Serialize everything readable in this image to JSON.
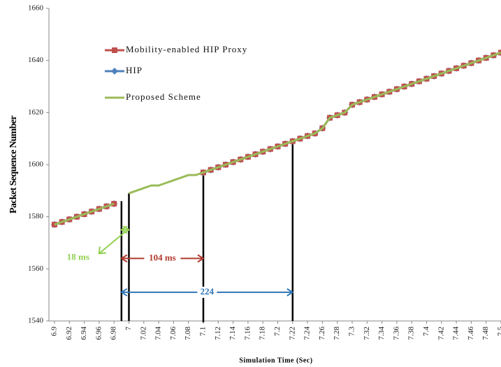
{
  "chart_data": {
    "type": "line",
    "x_label": "Simulation Time (Sec)",
    "y_label": "Packet Sequence Number",
    "xlim": [
      6.8925,
      7.5
    ],
    "ylim": [
      1540,
      1660
    ],
    "xticks": [
      6.9,
      6.92,
      6.94,
      6.96,
      6.98,
      7,
      7.02,
      7.04,
      7.06,
      7.08,
      7.1,
      7.12,
      7.14,
      7.16,
      7.18,
      7.2,
      7.22,
      7.24,
      7.26,
      7.28,
      7.3,
      7.32,
      7.34,
      7.36,
      7.38,
      7.4,
      7.42,
      7.44,
      7.46,
      7.48,
      7.5
    ],
    "yticks": [
      1540,
      1560,
      1580,
      1600,
      1620,
      1640,
      1660
    ],
    "legend": "upper left",
    "x": [
      6.9,
      6.91,
      6.92,
      6.93,
      6.94,
      6.95,
      6.96,
      6.97,
      6.98,
      6.99,
      7.0,
      7.01,
      7.02,
      7.03,
      7.04,
      7.05,
      7.06,
      7.07,
      7.08,
      7.09,
      7.1,
      7.11,
      7.12,
      7.13,
      7.14,
      7.15,
      7.16,
      7.17,
      7.18,
      7.19,
      7.2,
      7.21,
      7.22,
      7.23,
      7.24,
      7.25,
      7.26,
      7.27,
      7.28,
      7.29,
      7.3,
      7.31,
      7.32,
      7.33,
      7.34,
      7.35,
      7.36,
      7.37,
      7.38,
      7.39,
      7.4,
      7.41,
      7.42,
      7.43,
      7.44,
      7.45,
      7.46,
      7.47,
      7.48,
      7.49,
      7.5
    ],
    "series": [
      {
        "name": "Mobility-enabled HIP Proxy",
        "color": "#c0504d",
        "marker": "square",
        "values": [
          1577,
          1578,
          1579,
          1580,
          1581,
          1582,
          1583,
          1584,
          1585,
          null,
          null,
          null,
          null,
          null,
          null,
          null,
          null,
          null,
          null,
          null,
          1597,
          1598,
          1599,
          1600,
          1601,
          1602,
          1603,
          1604,
          1605,
          1606,
          1607,
          1608,
          1609,
          1610,
          1611,
          1612,
          1614,
          1618,
          1619,
          1620,
          1623,
          1624,
          1625,
          1626,
          1627,
          1628,
          1629,
          1630,
          1631,
          1632,
          1633,
          1634,
          1635,
          1636,
          1637,
          1638,
          1639,
          1640,
          1641,
          1642,
          1643
        ]
      },
      {
        "name": "HIP",
        "color": "#4f81bd",
        "marker": "diamond",
        "values": [
          1577,
          1578,
          1579,
          1580,
          1581,
          1582,
          1583,
          1584,
          1585,
          null,
          null,
          null,
          null,
          null,
          null,
          null,
          null,
          null,
          null,
          null,
          1597,
          1598,
          1599,
          1600,
          1601,
          1602,
          1603,
          1604,
          1605,
          1606,
          1607,
          1608,
          1609,
          1610,
          1611,
          1612,
          1614,
          1618,
          1619,
          1620,
          1623,
          1624,
          1625,
          1626,
          1627,
          1628,
          1629,
          1630,
          1631,
          1632,
          1633,
          1634,
          1635,
          1636,
          1637,
          1638,
          1639,
          1640,
          1641,
          1642,
          1643
        ]
      },
      {
        "name": "Proposed Scheme",
        "color": "#9bbb59",
        "marker": "none",
        "values": [
          1577,
          1578,
          1579,
          1580,
          1581,
          1582,
          1583,
          1584,
          1585,
          null,
          1589,
          1590,
          1591,
          1592,
          1592,
          1593,
          1594,
          1595,
          1596,
          1596,
          1597,
          1598,
          1599,
          1600,
          1601,
          1602,
          1603,
          1604,
          1605,
          1606,
          1607,
          1608,
          1609,
          1610,
          1611,
          1612,
          1614,
          1618,
          1619,
          1620,
          1623,
          1624,
          1625,
          1626,
          1627,
          1628,
          1629,
          1630,
          1631,
          1632,
          1633,
          1634,
          1635,
          1636,
          1637,
          1638,
          1639,
          1640,
          1641,
          1642,
          1643
        ]
      }
    ],
    "vlines": [
      {
        "x": 6.99,
        "y": 1586
      },
      {
        "x": 7.0,
        "y": 1589
      },
      {
        "x": 7.1,
        "y": 1597
      },
      {
        "x": 7.22,
        "y": 1609
      }
    ],
    "annotations": [
      {
        "text": "18 ms",
        "color": "#92d050",
        "x0": 6.99,
        "x1": 7.0,
        "y": 1575
      },
      {
        "text": "104 ms",
        "color": "#b03a2e",
        "x0": 6.99,
        "x1": 7.1,
        "y": 1564
      },
      {
        "text": "224",
        "color": "#2e75b6",
        "x0": 6.99,
        "x1": 7.22,
        "y": 1551
      }
    ]
  }
}
